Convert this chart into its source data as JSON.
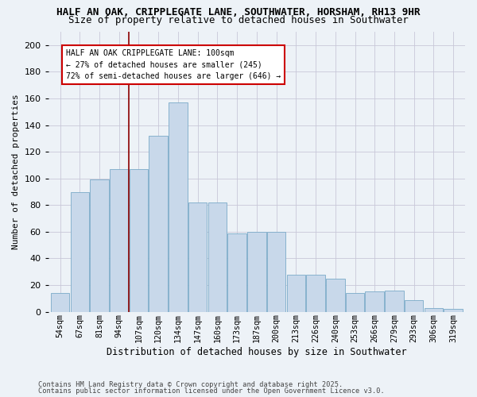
{
  "title_line1": "HALF AN OAK, CRIPPLEGATE LANE, SOUTHWATER, HORSHAM, RH13 9HR",
  "title_line2": "Size of property relative to detached houses in Southwater",
  "xlabel": "Distribution of detached houses by size in Southwater",
  "ylabel": "Number of detached properties",
  "categories": [
    "54sqm",
    "67sqm",
    "81sqm",
    "94sqm",
    "107sqm",
    "120sqm",
    "134sqm",
    "147sqm",
    "160sqm",
    "173sqm",
    "187sqm",
    "200sqm",
    "213sqm",
    "226sqm",
    "240sqm",
    "253sqm",
    "266sqm",
    "279sqm",
    "293sqm",
    "306sqm",
    "319sqm"
  ],
  "bar_values": [
    14,
    90,
    99,
    107,
    107,
    132,
    157,
    82,
    82,
    59,
    60,
    60,
    28,
    28,
    25,
    14,
    15,
    16,
    9,
    3,
    2
  ],
  "bar_color": "#c8d8ea",
  "bar_edge_color": "#7aaac8",
  "vline_color": "#8b0000",
  "annotation_title": "HALF AN OAK CRIPPLEGATE LANE: 100sqm",
  "annotation_line1": "← 27% of detached houses are smaller (245)",
  "annotation_line2": "72% of semi-detached houses are larger (646) →",
  "annotation_box_edge_color": "#cc0000",
  "ylim": [
    0,
    210
  ],
  "yticks": [
    0,
    20,
    40,
    60,
    80,
    100,
    120,
    140,
    160,
    180,
    200
  ],
  "bg_color": "#edf2f7",
  "fig_bg_color": "#edf2f7",
  "grid_color": "#c8c8d8",
  "footer_line1": "Contains HM Land Registry data © Crown copyright and database right 2025.",
  "footer_line2": "Contains public sector information licensed under the Open Government Licence v3.0."
}
